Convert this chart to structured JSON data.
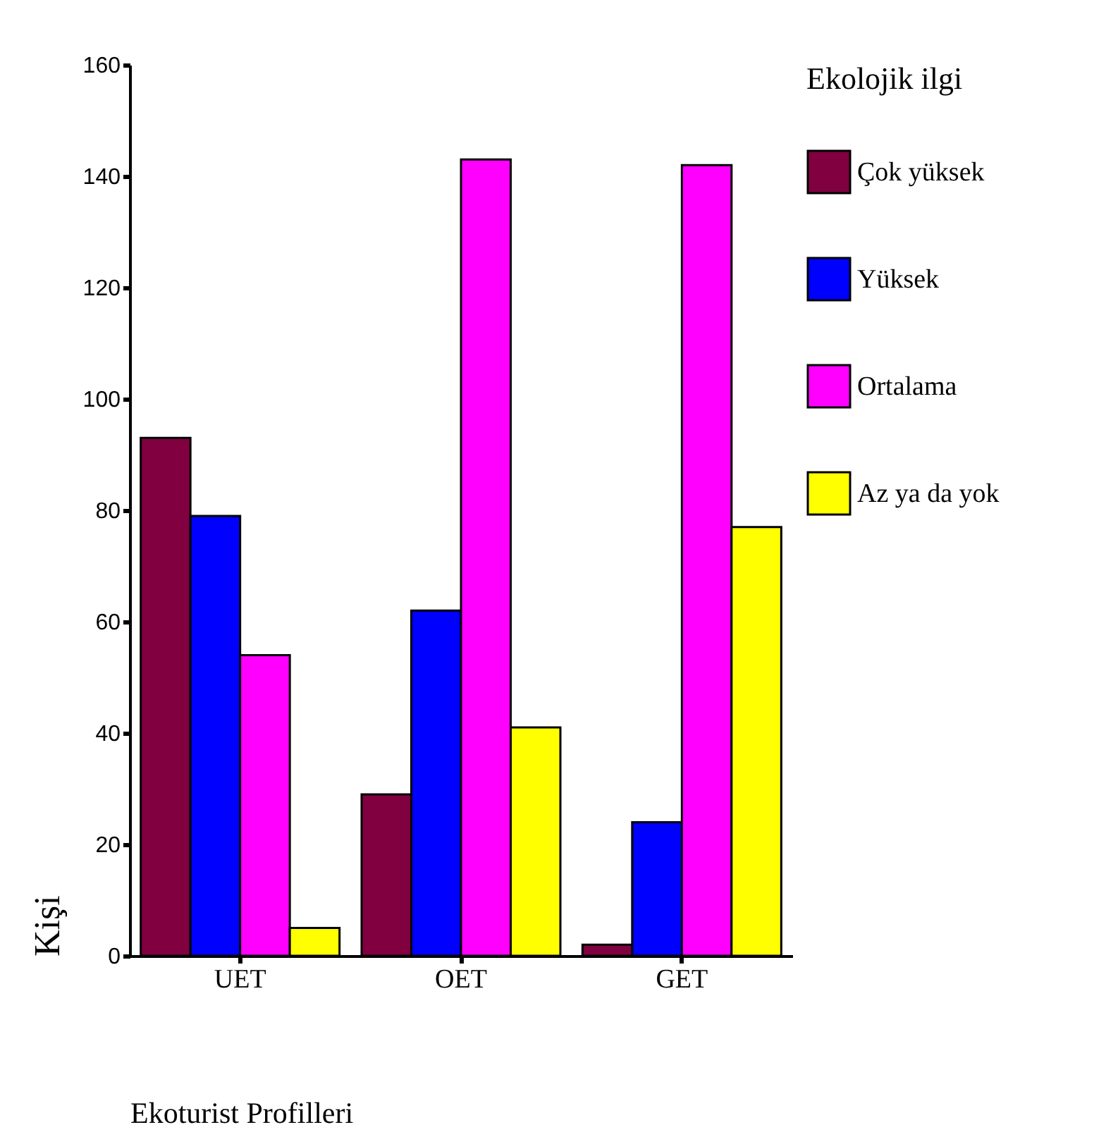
{
  "chart_data": {
    "type": "bar",
    "xlabel": "Ekoturist Profilleri",
    "ylabel": "Kişi",
    "legend_title": "Ekolojik ilgi",
    "legend": "right",
    "categories": [
      "UET",
      "OET",
      "GET"
    ],
    "series": [
      {
        "name": "Çok yüksek",
        "color": "#800040",
        "values": [
          93,
          29,
          2
        ]
      },
      {
        "name": "Yüksek",
        "color": "#0000ff",
        "values": [
          79,
          62,
          24
        ]
      },
      {
        "name": "Ortalama",
        "color": "#ff00ff",
        "values": [
          54,
          143,
          142
        ]
      },
      {
        "name": "Az ya da yok",
        "color": "#ffff00",
        "values": [
          5,
          41,
          77
        ]
      }
    ],
    "ylim": [
      0,
      160
    ],
    "yticks": [
      0,
      20,
      40,
      60,
      80,
      100,
      120,
      140,
      160
    ],
    "grid": false
  }
}
